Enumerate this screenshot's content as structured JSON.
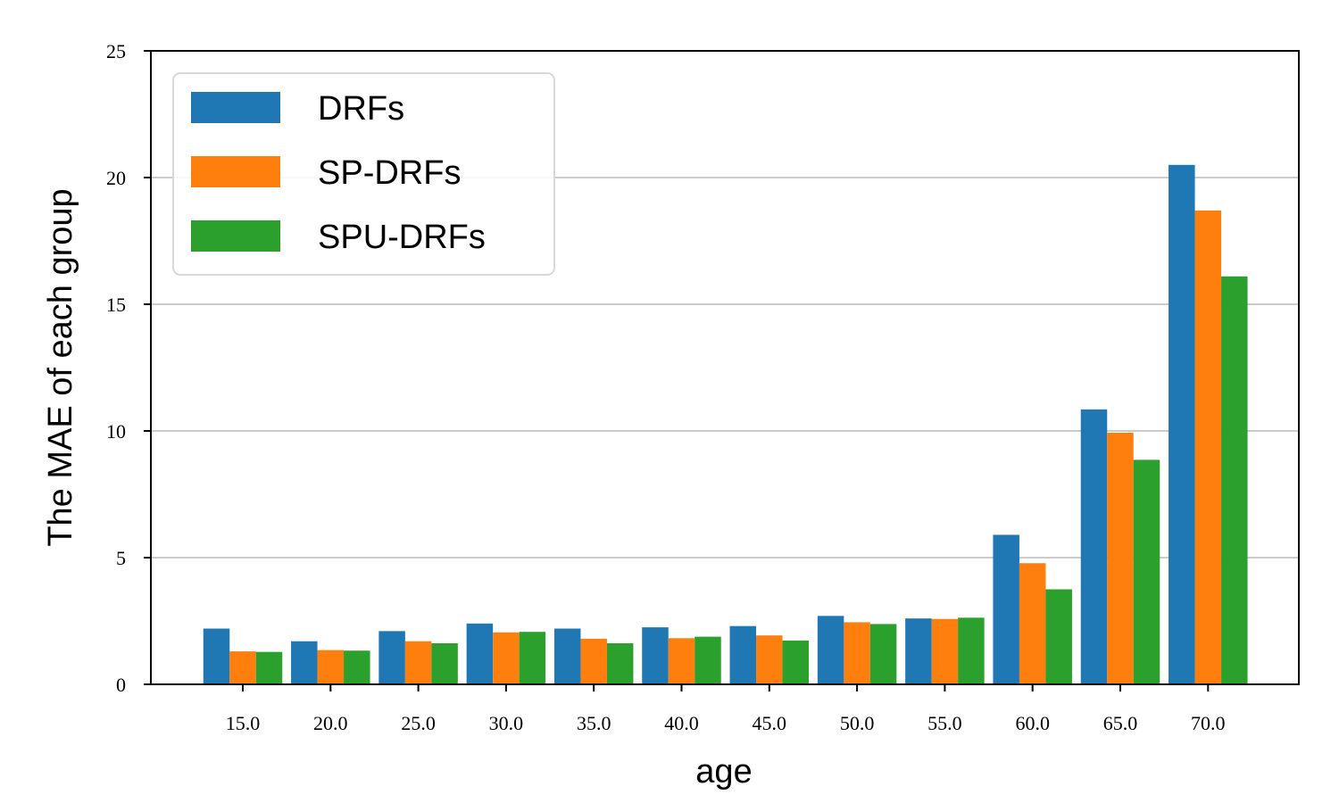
{
  "chart_data": {
    "type": "bar",
    "title": "",
    "xlabel": "age",
    "ylabel": "The MAE of each group",
    "ylim": [
      0,
      25
    ],
    "yticks": [
      "0",
      "5",
      "10",
      "15",
      "20",
      "25"
    ],
    "grid": "horizontal",
    "legend_position": "top-left",
    "categories": [
      "15.0",
      "20.0",
      "25.0",
      "30.0",
      "35.0",
      "40.0",
      "45.0",
      "50.0",
      "55.0",
      "60.0",
      "65.0",
      "70.0"
    ],
    "series": [
      {
        "name": "DRFs",
        "color": "#1f77b4",
        "values": [
          2.2,
          1.7,
          2.1,
          2.4,
          2.2,
          2.25,
          2.3,
          2.7,
          2.6,
          5.9,
          10.85,
          20.5
        ]
      },
      {
        "name": "SP-DRFs",
        "color": "#ff7f0e",
        "values": [
          1.3,
          1.35,
          1.7,
          2.05,
          1.8,
          1.82,
          1.93,
          2.45,
          2.58,
          4.78,
          9.93,
          18.7
        ]
      },
      {
        "name": "SPU-DRFs",
        "color": "#2ca02c",
        "values": [
          1.28,
          1.33,
          1.62,
          2.07,
          1.62,
          1.88,
          1.73,
          2.38,
          2.63,
          3.75,
          8.86,
          16.1
        ]
      }
    ]
  }
}
